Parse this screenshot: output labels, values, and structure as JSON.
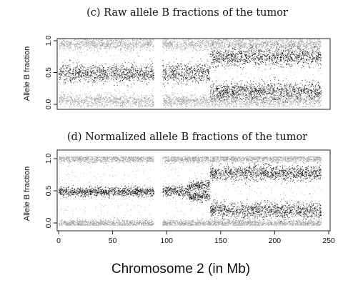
{
  "chart_data": [
    {
      "type": "scatter",
      "title": "(c) Raw allele B fractions of the tumor",
      "xlabel": "",
      "ylabel": "Allele B fraction",
      "xlim": [
        0,
        250
      ],
      "ylim": [
        0,
        1
      ],
      "x_ticks": [],
      "y_ticks": [
        "0.0",
        "0.5",
        "1.0"
      ],
      "gaps": [
        [
          88,
          96
        ]
      ],
      "bands": [
        {
          "x": [
            0,
            88
          ],
          "center": 0.95,
          "spread": 0.05,
          "tone": "light"
        },
        {
          "x": [
            96,
            243
          ],
          "center": 0.95,
          "spread": 0.05,
          "tone": "light"
        },
        {
          "x": [
            0,
            88
          ],
          "center": 0.06,
          "spread": 0.05,
          "tone": "light"
        },
        {
          "x": [
            96,
            243
          ],
          "center": 0.06,
          "spread": 0.05,
          "tone": "light"
        },
        {
          "x": [
            0,
            88
          ],
          "center": 0.49,
          "spread": 0.07,
          "tone": "dark"
        },
        {
          "x": [
            96,
            140
          ],
          "center": 0.5,
          "spread": 0.08,
          "tone": "dark"
        },
        {
          "x": [
            140,
            243
          ],
          "center": 0.75,
          "spread": 0.07,
          "tone": "dark"
        },
        {
          "x": [
            140,
            243
          ],
          "center": 0.21,
          "spread": 0.07,
          "tone": "dark"
        }
      ]
    },
    {
      "type": "scatter",
      "title": "(d) Normalized allele B fractions of the tumor",
      "xlabel": "Chromosome 2 (in Mb)",
      "ylabel": "Allele B fraction",
      "xlim": [
        0,
        250
      ],
      "ylim": [
        0,
        1
      ],
      "x_ticks": [
        "0",
        "50",
        "100",
        "150",
        "200",
        "250"
      ],
      "y_ticks": [
        "0.0",
        "0.5",
        "1.0"
      ],
      "gaps": [
        [
          88,
          96
        ]
      ],
      "bands": [
        {
          "x": [
            0,
            88
          ],
          "center": 1.0,
          "spread": 0.03,
          "tone": "light"
        },
        {
          "x": [
            96,
            243
          ],
          "center": 1.0,
          "spread": 0.03,
          "tone": "light"
        },
        {
          "x": [
            0,
            88
          ],
          "center": 0.0,
          "spread": 0.03,
          "tone": "light"
        },
        {
          "x": [
            96,
            243
          ],
          "center": 0.0,
          "spread": 0.03,
          "tone": "light"
        },
        {
          "x": [
            0,
            88
          ],
          "center": 0.49,
          "spread": 0.035,
          "tone": "dark"
        },
        {
          "x": [
            96,
            120
          ],
          "center": 0.5,
          "spread": 0.04,
          "tone": "dark"
        },
        {
          "x": [
            120,
            140
          ],
          "center": 0.58,
          "spread": 0.04,
          "tone": "dark"
        },
        {
          "x": [
            120,
            140
          ],
          "center": 0.42,
          "spread": 0.04,
          "tone": "dark"
        },
        {
          "x": [
            140,
            243
          ],
          "center": 0.78,
          "spread": 0.06,
          "tone": "dark"
        },
        {
          "x": [
            140,
            243
          ],
          "center": 0.2,
          "spread": 0.06,
          "tone": "dark"
        }
      ]
    }
  ],
  "colors": {
    "dark_points": "#111111",
    "light_points": "#9a9a9a",
    "frame": "#222222"
  }
}
